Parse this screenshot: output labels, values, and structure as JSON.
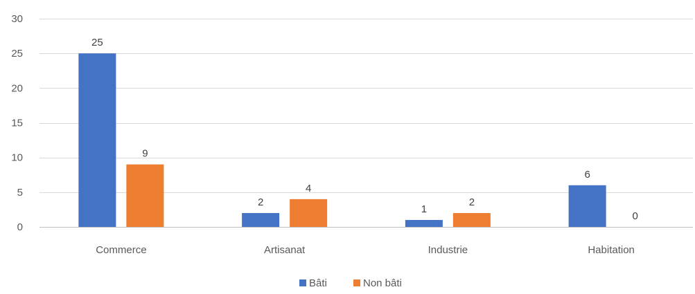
{
  "chart_data": {
    "type": "bar",
    "categories": [
      "Commerce",
      "Artisanat",
      "Industrie",
      "Habitation"
    ],
    "series": [
      {
        "name": "Bâti",
        "values": [
          25,
          2,
          1,
          6
        ],
        "color": "#4472C4"
      },
      {
        "name": "Non bâti",
        "values": [
          9,
          4,
          2,
          0
        ],
        "color": "#ED7D31"
      }
    ],
    "ylim": [
      0,
      30
    ],
    "yticks": [
      0,
      5,
      10,
      15,
      20,
      25,
      30
    ],
    "grid": true,
    "legend_position": "bottom",
    "data_labels": true
  }
}
